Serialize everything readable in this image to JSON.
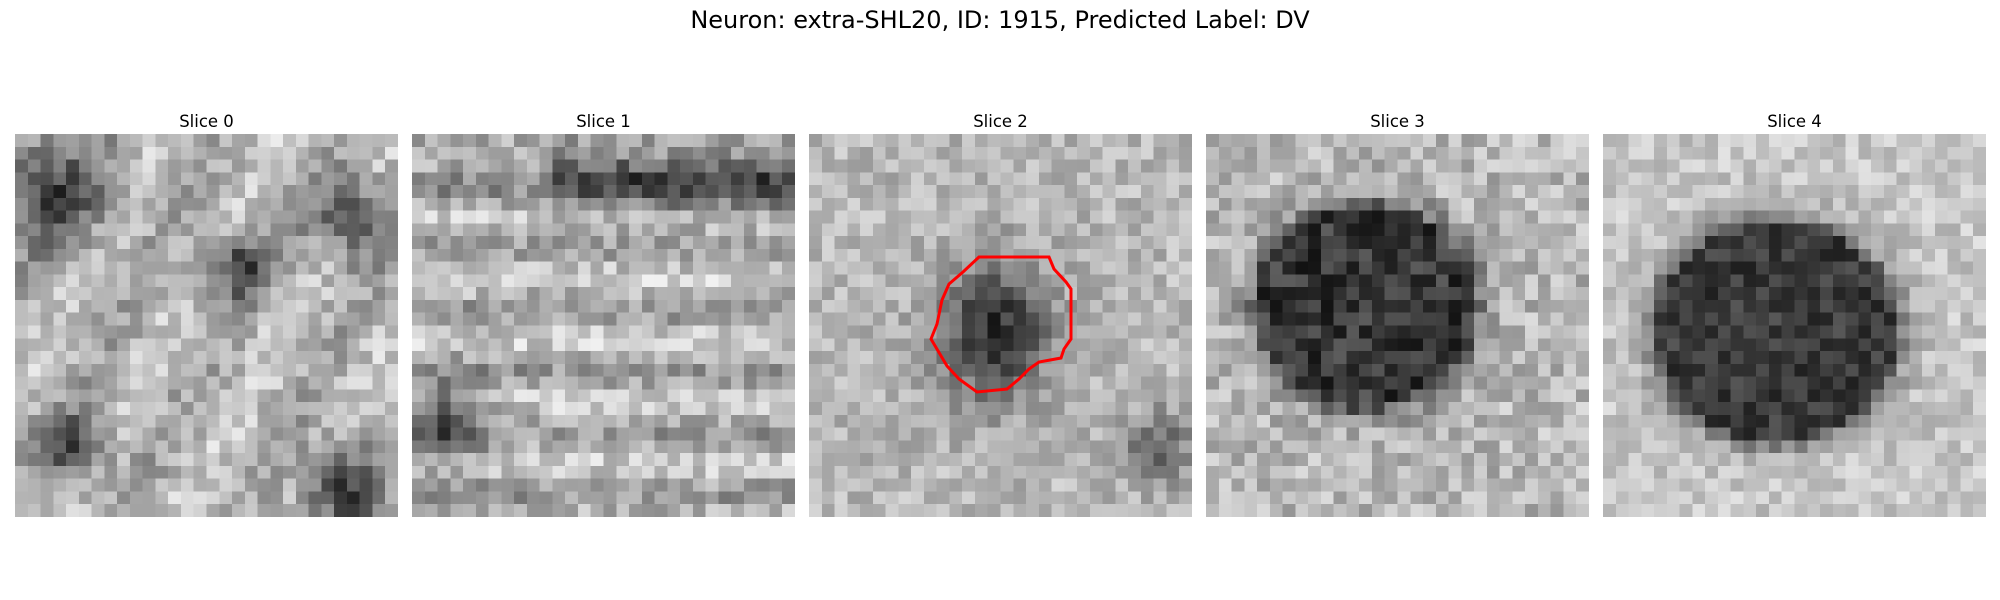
{
  "figure": {
    "title": "Neuron: extra-SHL20, ID: 1915, Predicted Label: DV"
  },
  "panels": [
    {
      "title": "Slice 0",
      "pattern": "noise-patchy"
    },
    {
      "title": "Slice 1",
      "pattern": "noise-striated"
    },
    {
      "title": "Slice 2",
      "pattern": "small-dark-blob",
      "has_contour": true
    },
    {
      "title": "Slice 3",
      "pattern": "large-dark-blob"
    },
    {
      "title": "Slice 4",
      "pattern": "large-dark-blob-darker"
    }
  ],
  "contour_color": "#ff0000"
}
